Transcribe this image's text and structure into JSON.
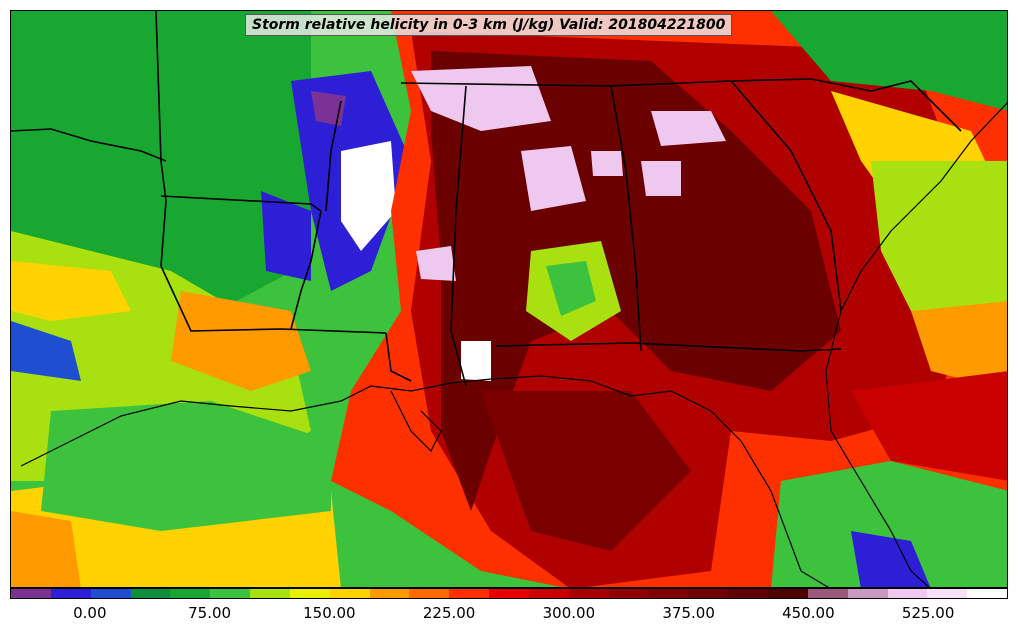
{
  "title": "Storm relative helicity in 0-3 km (J/kg) Valid: 201804221800",
  "colorbar": {
    "colors": [
      "#7b3294",
      "#2c1fd6",
      "#1f4fd0",
      "#0f8f3a",
      "#18a832",
      "#3cc23c",
      "#a8e010",
      "#e8f000",
      "#ffd200",
      "#ff9a00",
      "#ff6a00",
      "#ff3000",
      "#e80000",
      "#c80000",
      "#a80000",
      "#900000",
      "#800000",
      "#700000",
      "#600000",
      "#500000",
      "#9a5a7a",
      "#c89ac0",
      "#efc8ef",
      "#f8e0f8",
      "#ffffff"
    ],
    "ticks": [
      "0.00",
      "75.00",
      "150.00",
      "225.00",
      "300.00",
      "375.00",
      "450.00",
      "525.00"
    ],
    "tick_values": [
      0,
      75,
      150,
      225,
      300,
      375,
      450,
      525
    ],
    "min": -50,
    "max": 575
  },
  "field_colors": {
    "ocean_green": "#18a832",
    "dark_green": "#0f8f3a",
    "light_green": "#3cc23c",
    "yellow_green": "#a8e010",
    "yellow": "#ffd200",
    "orange": "#ff9a00",
    "red": "#ff3000",
    "dark_red": "#b00000",
    "maroon": "#6a0000",
    "blue": "#2c1fd6",
    "purple": "#7b3294",
    "pink": "#efc8ef",
    "white": "#ffffff"
  }
}
